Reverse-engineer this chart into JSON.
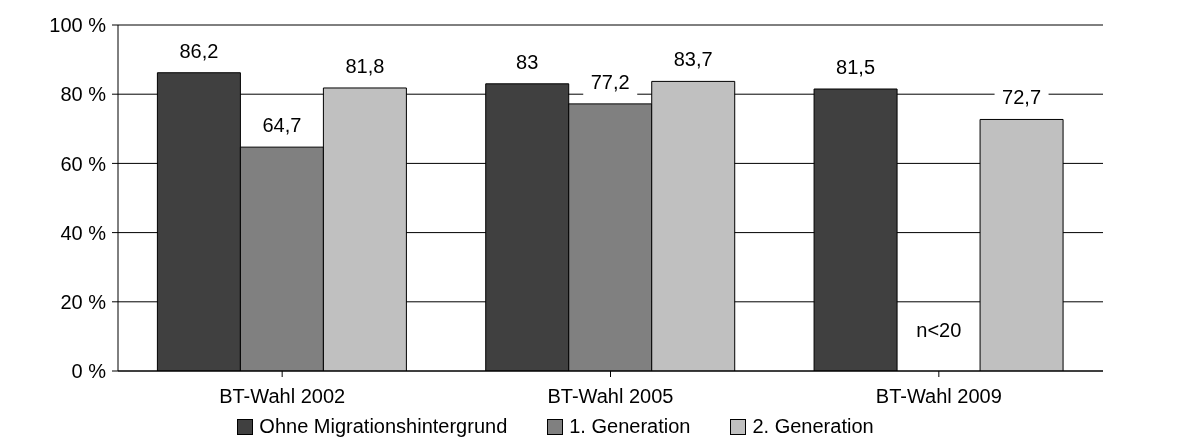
{
  "chart_data": {
    "type": "bar",
    "categories": [
      "BT-Wahl 2002",
      "BT-Wahl 2005",
      "BT-Wahl 2009"
    ],
    "series": [
      {
        "name": "Ohne Migrationshintergrund",
        "color": "#404040",
        "values": [
          86.2,
          83,
          81.5
        ],
        "value_labels": [
          "86,2",
          "83",
          "81,5"
        ]
      },
      {
        "name": "1. Generation",
        "color": "#808080",
        "values": [
          64.7,
          77.2,
          null
        ],
        "value_labels": [
          "64,7",
          "77,2",
          null
        ]
      },
      {
        "name": "2. Generation",
        "color": "#c0c0c0",
        "values": [
          81.8,
          83.7,
          72.7
        ],
        "value_labels": [
          "81,8",
          "83,7",
          "72,7"
        ]
      }
    ],
    "ylim": [
      0,
      100
    ],
    "yticks": [
      {
        "value": 0,
        "label": "0 %"
      },
      {
        "value": 20,
        "label": "20 %"
      },
      {
        "value": 40,
        "label": "40 %"
      },
      {
        "value": 60,
        "label": "60 %"
      },
      {
        "value": 80,
        "label": "80 %"
      },
      {
        "value": 100,
        "label": "100 %"
      }
    ],
    "grid": "y",
    "legend": "bottom",
    "annotations": [
      "n<20"
    ]
  }
}
